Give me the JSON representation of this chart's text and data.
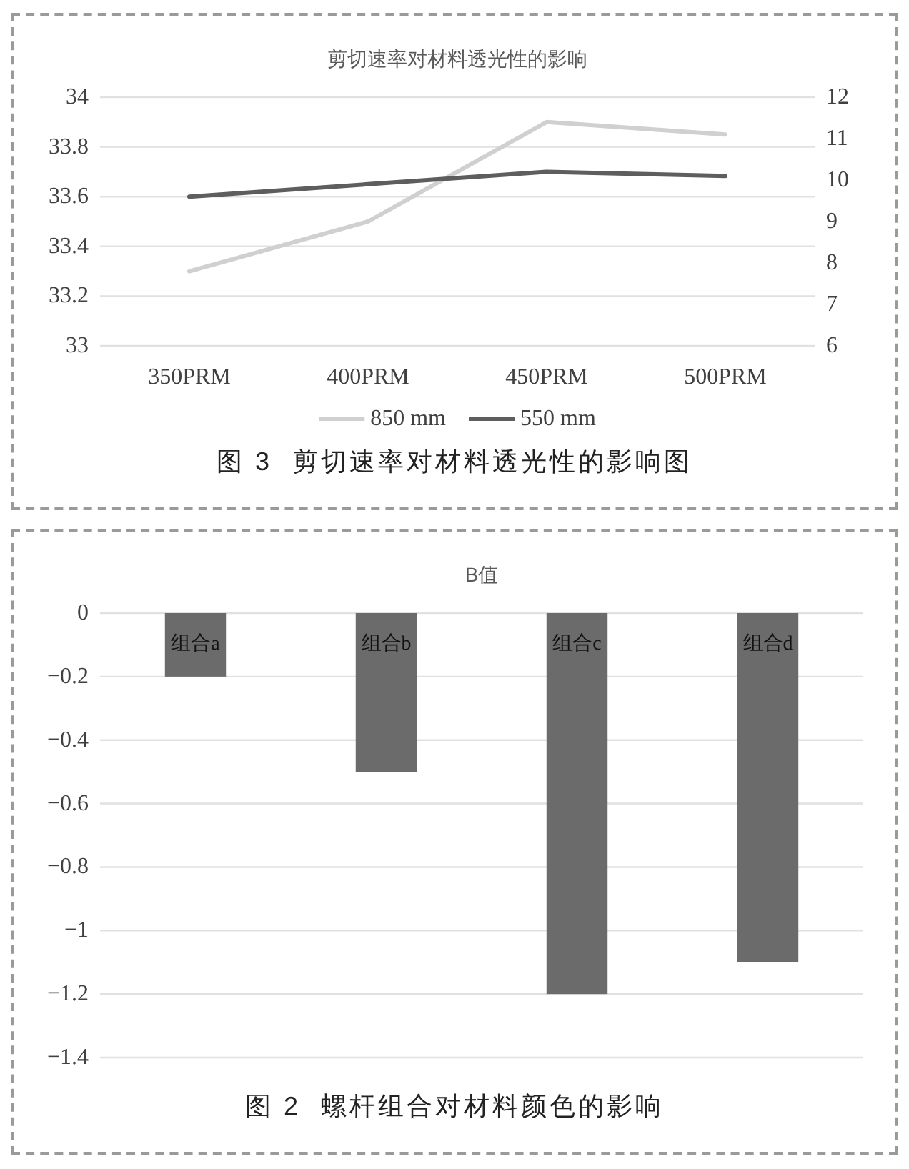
{
  "chart_data": [
    {
      "type": "line",
      "title": "剪切速率对材料透光性的影响",
      "categories": [
        "350PRM",
        "400PRM",
        "450PRM",
        "500PRM"
      ],
      "series": [
        {
          "name": "850 mm",
          "color": "#d0d0d0",
          "values": [
            33.3,
            33.5,
            33.9,
            33.85
          ]
        },
        {
          "name": "550 mm",
          "color": "#5e5e5e",
          "values": [
            9.6,
            9.9,
            10.2,
            10.1
          ],
          "axis": "y2"
        }
      ],
      "ylim": [
        33,
        34
      ],
      "yticks": [
        33,
        33.2,
        33.4,
        33.6,
        33.8,
        34
      ],
      "y2lim": [
        6,
        12
      ],
      "y2ticks": [
        6,
        7,
        8,
        9,
        10,
        11,
        12
      ],
      "grid": "y",
      "legend": "bottom",
      "annotations": [
        "图 3  剪切速率对材料透光性的影响图"
      ]
    },
    {
      "type": "bar",
      "title": "B值",
      "categories": [
        "组合a",
        "组合b",
        "组合c",
        "组合d"
      ],
      "values": [
        -0.2,
        -0.5,
        -1.2,
        -1.1
      ],
      "color": "#6b6b6b",
      "ylim": [
        -1.4,
        0
      ],
      "yticks": [
        {
          "value": -1.4,
          "label": "−1.4"
        },
        {
          "value": -1.2,
          "label": "−1.2"
        },
        {
          "value": -1,
          "label": "−1"
        },
        {
          "value": -0.8,
          "label": "−0.8"
        },
        {
          "value": -0.6,
          "label": "−0.6"
        },
        {
          "value": -0.4,
          "label": "−0.4"
        },
        {
          "value": -0.2,
          "label": "−0.2"
        },
        0
      ],
      "grid": "y",
      "annotations": [
        "图 2  螺杆组合对材料颜色的影响"
      ]
    }
  ]
}
